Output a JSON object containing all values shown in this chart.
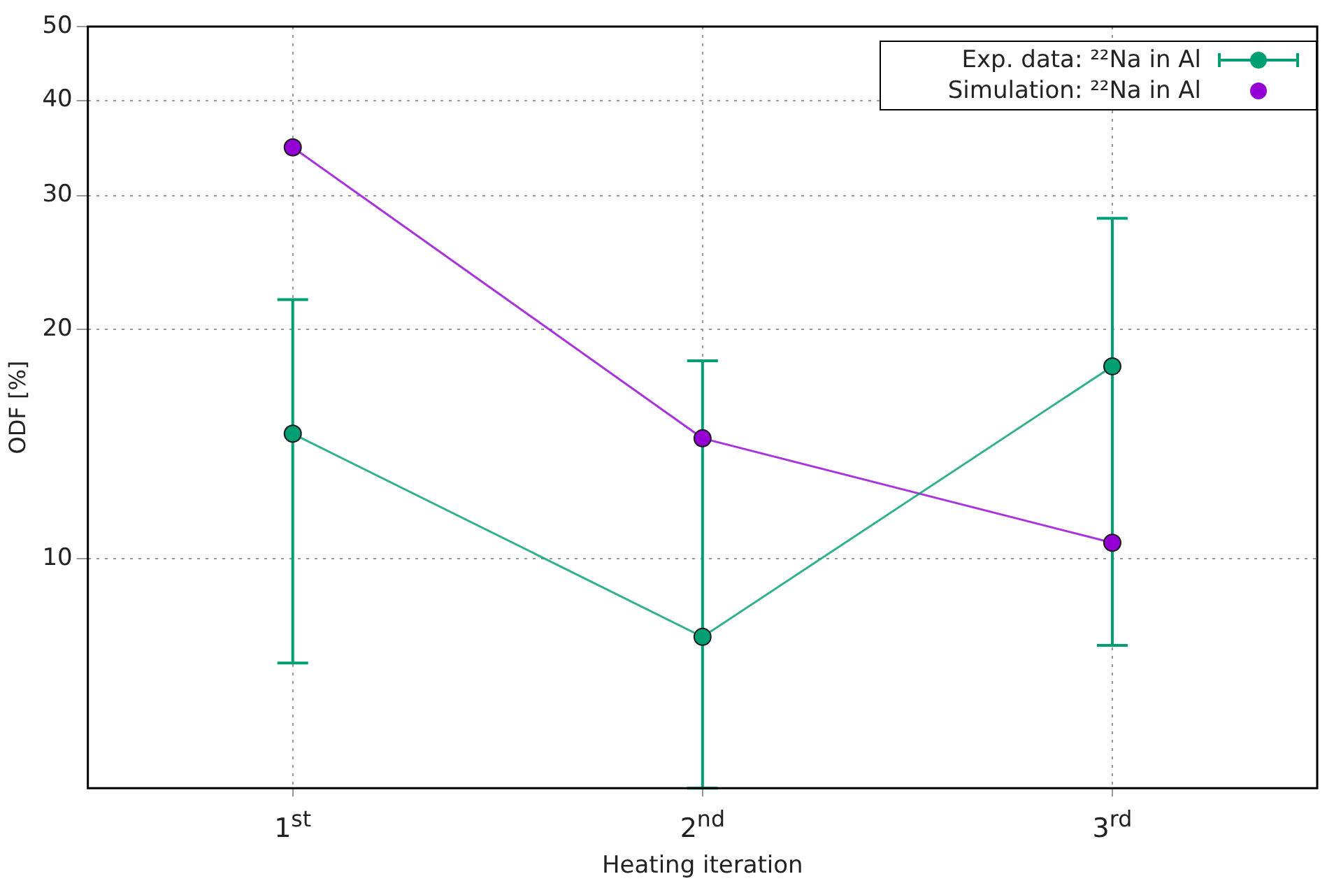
{
  "chart_data": {
    "type": "line",
    "xlabel": "Heating iteration",
    "ylabel": "ODF [%]",
    "categories": [
      "1$^{st}$",
      "2$^{nd}$",
      "3$^{rd}$"
    ],
    "log": "y",
    "ylim": [
      5,
      50
    ],
    "yticks": [
      10,
      20,
      30,
      40,
      50
    ],
    "grid": true,
    "legend": "top right",
    "marker": "circle",
    "series": [
      {
        "name": "Exp. data: ²²Na in Al",
        "color": "#009e73",
        "values": [
          14.6,
          7.9,
          17.9
        ],
        "errors": [
          [
            7.3,
            21.9
          ],
          [
            5.0,
            18.2
          ],
          [
            7.7,
            28.0
          ]
        ]
      },
      {
        "name": "Simulation: ²²Na in Al",
        "color": "#9400d3",
        "values": [
          34.7,
          14.4,
          10.5
        ]
      }
    ]
  }
}
